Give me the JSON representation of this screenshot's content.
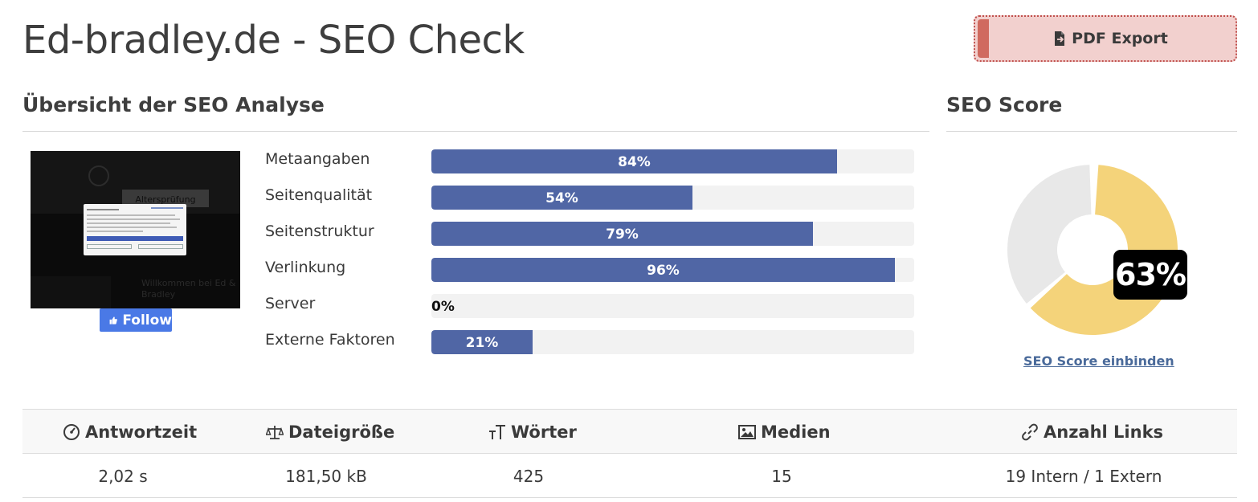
{
  "page": {
    "title": "Ed-bradley.de - SEO Check"
  },
  "export": {
    "label": "PDF Export",
    "icon": "file-export-icon"
  },
  "overview": {
    "title": "Übersicht der SEO Analyse",
    "thumbnail": {
      "age_check_text": "Altersprüfung",
      "welcome_text": "Willkommen bei Ed & Bradley"
    },
    "follow_label": "Follow",
    "rows": [
      {
        "label": "Metaangaben",
        "percent": 84,
        "display": "84%"
      },
      {
        "label": "Seitenqualität",
        "percent": 54,
        "display": "54%"
      },
      {
        "label": "Seitenstruktur",
        "percent": 79,
        "display": "79%"
      },
      {
        "label": "Verlinkung",
        "percent": 96,
        "display": "96%"
      },
      {
        "label": "Server",
        "percent": 0,
        "display": "0%"
      },
      {
        "label": "Externe Faktoren",
        "percent": 21,
        "display": "21%"
      }
    ],
    "bar_color": "#5066a5"
  },
  "score": {
    "title": "SEO Score",
    "value": 63,
    "display": "63%",
    "fill_color": "#f4d37a",
    "rest_color": "#e8e8e8",
    "embed_link": "SEO Score einbinden"
  },
  "stats": [
    {
      "icon": "speedometer-icon",
      "label": "Antwortzeit",
      "value": "2,02 s"
    },
    {
      "icon": "scale-icon",
      "label": "Dateigröße",
      "value": "181,50 kB"
    },
    {
      "icon": "text-height-icon",
      "label": "Wörter",
      "value": "425"
    },
    {
      "icon": "image-icon",
      "label": "Medien",
      "value": "15"
    },
    {
      "icon": "link-icon",
      "label": "Anzahl Links",
      "value": "19 Intern / 1 Extern"
    }
  ]
}
